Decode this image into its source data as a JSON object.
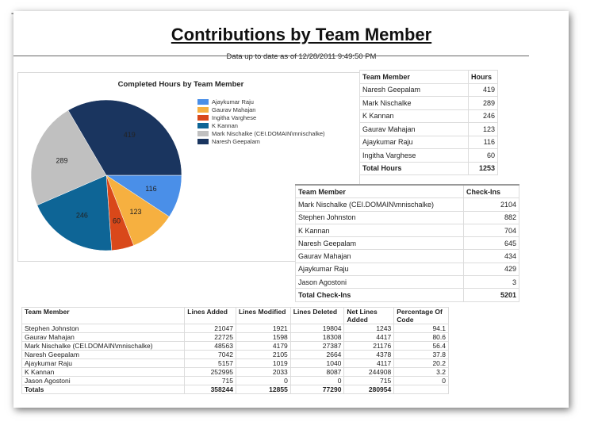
{
  "report": {
    "title": "Contributions by Team Member",
    "subtitle": "Data up to date as of 12/28/2011 9:49:50 PM",
    "corner_mark": "--"
  },
  "chart_data": {
    "type": "pie",
    "title": "Completed Hours by Team Member",
    "legend_position": "right",
    "categories": [
      "Ajaykumar Raju",
      "Gaurav Mahajan",
      "Ingitha Varghese",
      "K Kannan",
      "Mark Nischalke (CEI.DOMAIN\\mnischalke)",
      "Naresh Geepalam"
    ],
    "values": [
      116,
      123,
      60,
      246,
      289,
      419
    ],
    "colors": [
      "#4a8fe8",
      "#f6b040",
      "#d9481a",
      "#0e6596",
      "#c0c0c0",
      "#1a355f"
    ],
    "data_labels": [
      "116",
      "123",
      "60",
      "246",
      "289",
      "419"
    ]
  },
  "hours_table": {
    "headers": [
      "Team Member",
      "Hours"
    ],
    "rows": [
      [
        "Naresh Geepalam",
        "419"
      ],
      [
        "Mark Nischalke",
        "289"
      ],
      [
        "K Kannan",
        "246"
      ],
      [
        "Gaurav Mahajan",
        "123"
      ],
      [
        "Ajaykumar Raju",
        "116"
      ],
      [
        "Ingitha Varghese",
        "60"
      ]
    ],
    "total": [
      "Total Hours",
      "1253"
    ]
  },
  "checkins_table": {
    "headers": [
      "Team Member",
      "Check-Ins"
    ],
    "rows": [
      [
        "Mark Nischalke (CEI.DOMAIN\\mnischalke)",
        "2104"
      ],
      [
        "Stephen Johnston",
        "882"
      ],
      [
        "K Kannan",
        "704"
      ],
      [
        "Naresh Geepalam",
        "645"
      ],
      [
        "Gaurav Mahajan",
        "434"
      ],
      [
        "Ajaykumar Raju",
        "429"
      ],
      [
        "Jason Agostoni",
        "3"
      ]
    ],
    "total": [
      "Total Check-Ins",
      "5201"
    ]
  },
  "lines_table": {
    "headers": [
      "Team Member",
      "Lines Added",
      "Lines Modified",
      "Lines Deleted",
      "Net Lines Added",
      "Percentage Of Code"
    ],
    "rows": [
      [
        "Stephen Johnston",
        "21047",
        "1921",
        "19804",
        "1243",
        "94.1"
      ],
      [
        "Gaurav Mahajan",
        "22725",
        "1598",
        "18308",
        "4417",
        "80.6"
      ],
      [
        "Mark Nischalke (CEI.DOMAIN\\mnischalke)",
        "48563",
        "4179",
        "27387",
        "21176",
        "56.4"
      ],
      [
        "Naresh Geepalam",
        "7042",
        "2105",
        "2664",
        "4378",
        "37.8"
      ],
      [
        "Ajaykumar Raju",
        "5157",
        "1019",
        "1040",
        "4117",
        "20.2"
      ],
      [
        "K Kannan",
        "252995",
        "2033",
        "8087",
        "244908",
        "3.2"
      ],
      [
        "Jason Agostoni",
        "715",
        "0",
        "0",
        "715",
        "0"
      ]
    ],
    "total": [
      "Totals",
      "358244",
      "12855",
      "77290",
      "280954",
      ""
    ]
  }
}
